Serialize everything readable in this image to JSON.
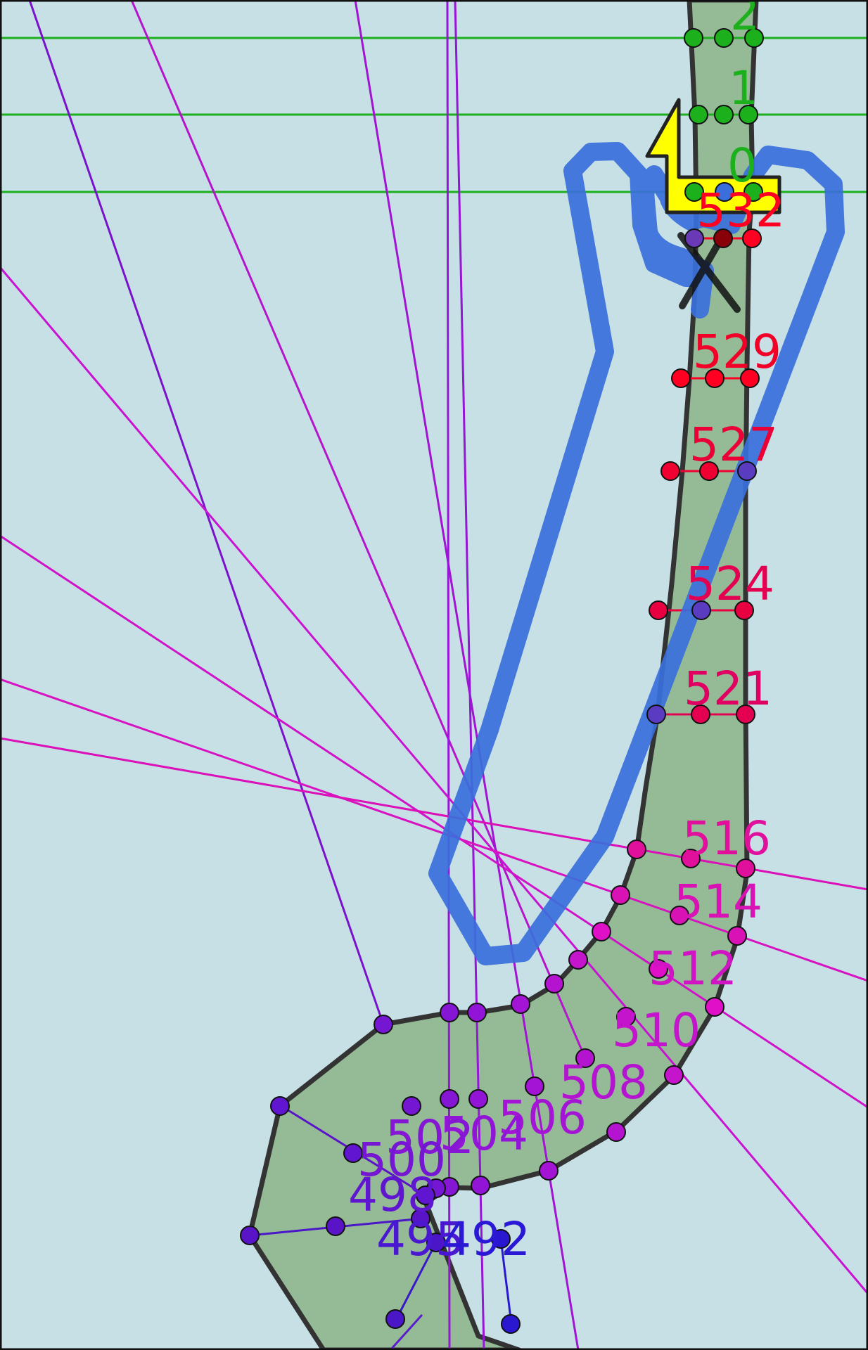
{
  "colors": {
    "background": "#c6e0e6",
    "road_fill": "#94bb96",
    "road_outline": "#333333",
    "green_lines": "#1db01d",
    "route": "#3a6fdb",
    "marker_yellow": "#ffff00",
    "marker_black": "#111111",
    "frame": "#111111"
  },
  "labels": {
    "station_2": "2",
    "station_1": "1",
    "station_0": "0",
    "station_532": "532",
    "station_529": "529",
    "station_527": "527",
    "station_524": "524",
    "station_521": "521",
    "station_516": "516",
    "station_514": "514",
    "station_512": "512",
    "station_510": "510",
    "station_508": "508",
    "station_506": "506",
    "station_504": "504",
    "station_502": "502",
    "station_500": "500",
    "station_498": "498",
    "station_495": "495",
    "station_492": "492"
  },
  "icons": {
    "start_marker": "yellow-arrow-icon",
    "end_marker": "x-mark-icon"
  }
}
